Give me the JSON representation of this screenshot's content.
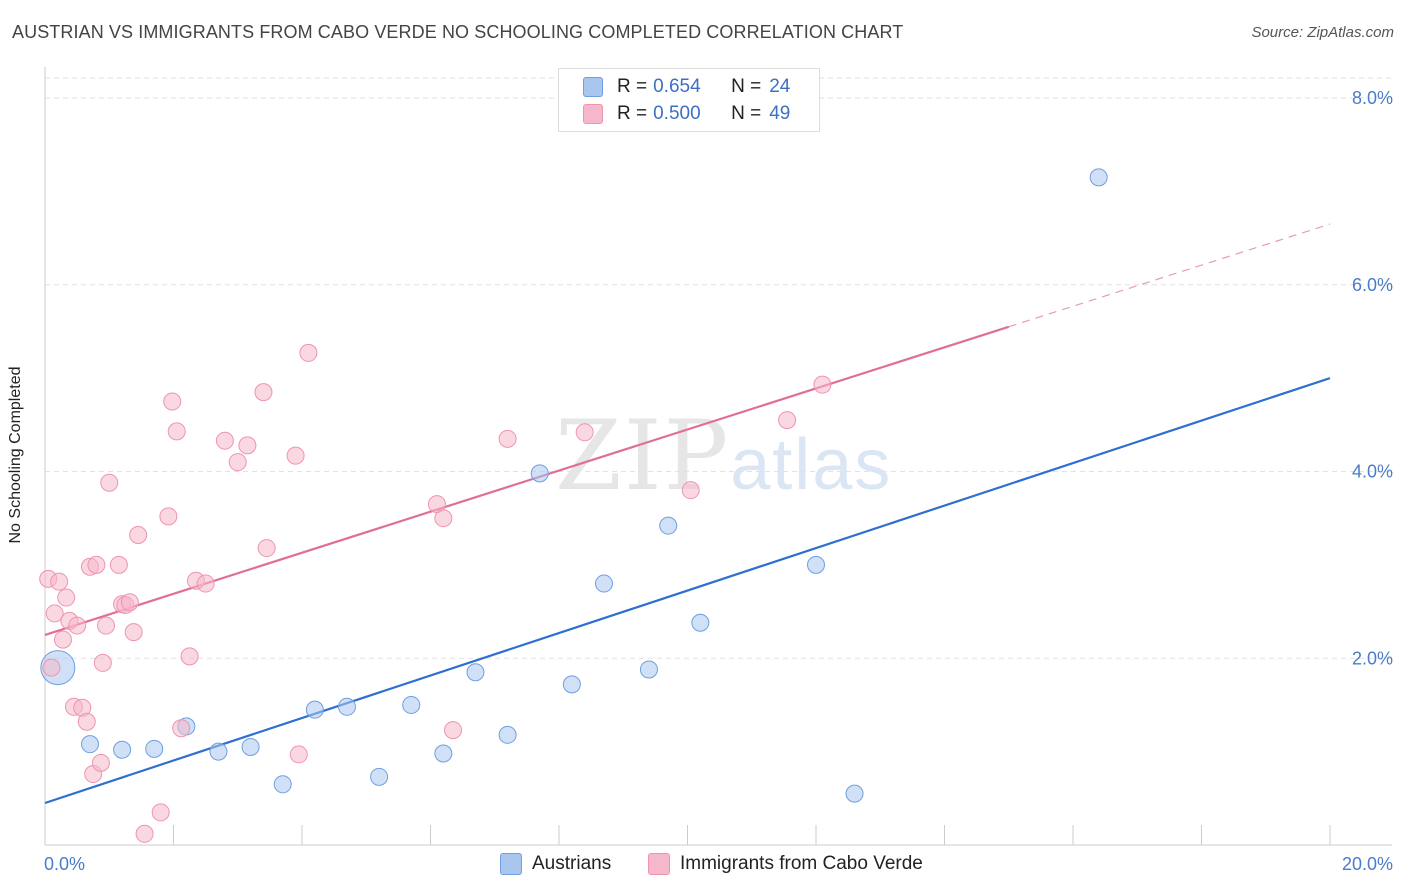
{
  "header": {
    "title": "AUSTRIAN VS IMMIGRANTS FROM CABO VERDE NO SCHOOLING COMPLETED CORRELATION CHART",
    "source": "Source: ZipAtlas.com"
  },
  "watermark": {
    "zip": "ZIP",
    "atlas": "atlas"
  },
  "legend": {
    "rows": [
      {
        "r_label": "R =",
        "r_value": "0.654",
        "n_label": "N =",
        "n_value": "24",
        "color": "#a9c6ee"
      },
      {
        "r_label": "R =",
        "r_value": "0.500",
        "n_label": "N =",
        "n_value": "49",
        "color": "#f5b8cb"
      }
    ]
  },
  "bottom_legend": [
    {
      "label": "Austrians",
      "color": "#a9c6ee"
    },
    {
      "label": "Immigrants from Cabo Verde",
      "color": "#f5b8cb"
    }
  ],
  "chart_data": {
    "type": "scatter",
    "title": "AUSTRIAN VS IMMIGRANTS FROM CABO VERDE NO SCHOOLING COMPLETED CORRELATION CHART",
    "xlabel": "",
    "ylabel": "No Schooling Completed",
    "xlim": [
      0,
      20
    ],
    "ylim": [
      0,
      8.3
    ],
    "x_ticks": [
      {
        "value": 0,
        "label": "0.0%"
      },
      {
        "value": 20,
        "label": "20.0%"
      }
    ],
    "y_ticks": [
      {
        "value": 2,
        "label": "2.0%"
      },
      {
        "value": 4,
        "label": "4.0%"
      },
      {
        "value": 6,
        "label": "6.0%"
      },
      {
        "value": 8,
        "label": "8.0%"
      }
    ],
    "grid": true,
    "legend_position": "top-center",
    "series": [
      {
        "name": "Austrians",
        "color": "#6f9fe0",
        "fill": "#a9c6ee",
        "trend": {
          "x": [
            0,
            20
          ],
          "y": [
            0.45,
            5.0
          ],
          "color": "#2e6fcf"
        },
        "points": [
          {
            "x": 0.2,
            "y": 1.9,
            "big": true
          },
          {
            "x": 0.7,
            "y": 1.08
          },
          {
            "x": 1.2,
            "y": 1.02
          },
          {
            "x": 1.7,
            "y": 1.03
          },
          {
            "x": 2.2,
            "y": 1.27
          },
          {
            "x": 2.7,
            "y": 1.0
          },
          {
            "x": 3.2,
            "y": 1.05
          },
          {
            "x": 3.7,
            "y": 0.65
          },
          {
            "x": 4.2,
            "y": 1.45
          },
          {
            "x": 4.7,
            "y": 1.48
          },
          {
            "x": 5.2,
            "y": 0.73
          },
          {
            "x": 5.7,
            "y": 1.5
          },
          {
            "x": 6.2,
            "y": 0.98
          },
          {
            "x": 6.7,
            "y": 1.85
          },
          {
            "x": 7.2,
            "y": 1.18
          },
          {
            "x": 7.7,
            "y": 3.98
          },
          {
            "x": 8.2,
            "y": 1.72
          },
          {
            "x": 8.7,
            "y": 2.8
          },
          {
            "x": 9.4,
            "y": 1.88
          },
          {
            "x": 9.7,
            "y": 3.42
          },
          {
            "x": 10.2,
            "y": 2.38
          },
          {
            "x": 12.0,
            "y": 3.0
          },
          {
            "x": 12.6,
            "y": 0.55
          },
          {
            "x": 16.4,
            "y": 7.15
          }
        ]
      },
      {
        "name": "Immigrants from Cabo Verde",
        "color": "#ee94b0",
        "fill": "#f5b8cb",
        "trend": {
          "x": [
            0,
            15
          ],
          "y": [
            2.25,
            5.55
          ],
          "dash_to": {
            "x": 20,
            "y": 6.65
          },
          "color": "#e06f96"
        },
        "points": [
          {
            "x": 0.05,
            "y": 2.85
          },
          {
            "x": 0.1,
            "y": 1.9
          },
          {
            "x": 0.15,
            "y": 2.48
          },
          {
            "x": 0.22,
            "y": 2.82
          },
          {
            "x": 0.28,
            "y": 2.2
          },
          {
            "x": 0.33,
            "y": 2.65
          },
          {
            "x": 0.38,
            "y": 2.4
          },
          {
            "x": 0.45,
            "y": 1.48
          },
          {
            "x": 0.5,
            "y": 2.35
          },
          {
            "x": 0.58,
            "y": 1.47
          },
          {
            "x": 0.65,
            "y": 1.32
          },
          {
            "x": 0.7,
            "y": 2.98
          },
          {
            "x": 0.75,
            "y": 0.76
          },
          {
            "x": 0.8,
            "y": 3.0
          },
          {
            "x": 0.87,
            "y": 0.88
          },
          {
            "x": 0.9,
            "y": 1.95
          },
          {
            "x": 0.95,
            "y": 2.35
          },
          {
            "x": 1.0,
            "y": 3.88
          },
          {
            "x": 1.15,
            "y": 3.0
          },
          {
            "x": 1.2,
            "y": 2.58
          },
          {
            "x": 1.25,
            "y": 2.57
          },
          {
            "x": 1.32,
            "y": 2.6
          },
          {
            "x": 1.38,
            "y": 2.28
          },
          {
            "x": 1.45,
            "y": 3.32
          },
          {
            "x": 1.55,
            "y": 0.12
          },
          {
            "x": 1.8,
            "y": 0.35
          },
          {
            "x": 1.92,
            "y": 3.52
          },
          {
            "x": 1.98,
            "y": 4.75
          },
          {
            "x": 2.05,
            "y": 4.43
          },
          {
            "x": 2.12,
            "y": 1.25
          },
          {
            "x": 2.25,
            "y": 2.02
          },
          {
            "x": 2.35,
            "y": 2.83
          },
          {
            "x": 2.5,
            "y": 2.8
          },
          {
            "x": 2.8,
            "y": 4.33
          },
          {
            "x": 3.0,
            "y": 4.1
          },
          {
            "x": 3.15,
            "y": 4.28
          },
          {
            "x": 3.4,
            "y": 4.85
          },
          {
            "x": 3.45,
            "y": 3.18
          },
          {
            "x": 3.9,
            "y": 4.17
          },
          {
            "x": 3.95,
            "y": 0.97
          },
          {
            "x": 4.1,
            "y": 5.27
          },
          {
            "x": 6.1,
            "y": 3.65
          },
          {
            "x": 6.2,
            "y": 3.5
          },
          {
            "x": 6.35,
            "y": 1.23
          },
          {
            "x": 7.2,
            "y": 4.35
          },
          {
            "x": 8.4,
            "y": 4.42
          },
          {
            "x": 10.05,
            "y": 3.8
          },
          {
            "x": 11.55,
            "y": 4.55
          },
          {
            "x": 12.1,
            "y": 4.93
          }
        ]
      }
    ]
  }
}
